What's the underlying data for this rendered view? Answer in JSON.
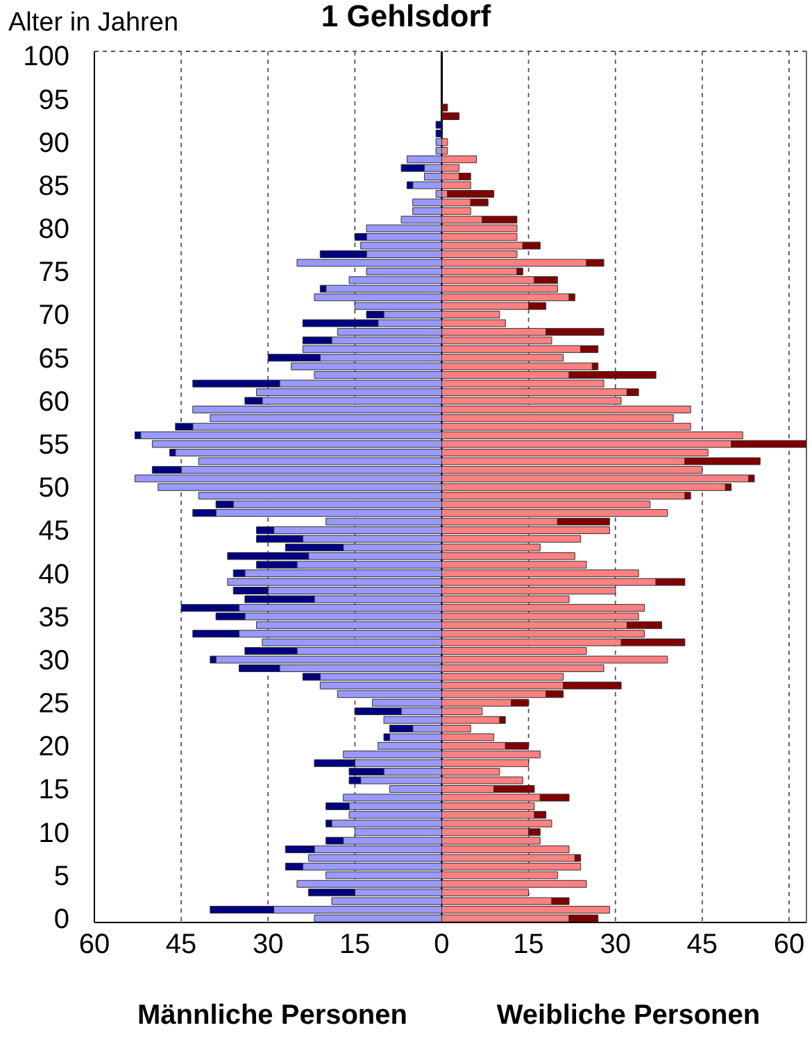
{
  "chart_data": {
    "type": "bar",
    "orientation": "horizontal",
    "stacked": true,
    "title": "1 Gehlsdorf",
    "ylabel": "Alter in Jahren",
    "annotations": [
      "Männliche Personen",
      "Weibliche Personen"
    ],
    "categories": [
      "100",
      null,
      null,
      null,
      null,
      "95",
      null,
      null,
      null,
      null,
      "90",
      null,
      null,
      null,
      null,
      "85",
      null,
      null,
      null,
      null,
      "80",
      null,
      null,
      null,
      null,
      "75",
      null,
      null,
      null,
      null,
      "70",
      null,
      null,
      null,
      null,
      "65",
      null,
      null,
      null,
      null,
      "60",
      null,
      null,
      null,
      null,
      "55",
      null,
      null,
      null,
      null,
      "50",
      null,
      null,
      null,
      null,
      "45",
      null,
      null,
      null,
      null,
      "40",
      null,
      null,
      null,
      null,
      "35",
      null,
      null,
      null,
      null,
      "30",
      null,
      null,
      null,
      null,
      "25",
      null,
      null,
      null,
      null,
      "20",
      null,
      null,
      null,
      null,
      "15",
      null,
      null,
      null,
      null,
      "10",
      null,
      null,
      null,
      null,
      "5",
      null,
      null,
      null,
      null,
      "0"
    ],
    "series": [
      {
        "color": "#9999ff",
        "values": [
          0,
          0,
          0,
          0,
          0,
          0,
          0,
          0,
          0,
          0,
          -1,
          -1,
          -6,
          -3,
          -3,
          -5,
          -1,
          -5,
          -5,
          -7,
          -13,
          -13,
          -14,
          -13,
          -25,
          -13,
          -16,
          -20,
          -22,
          -15,
          -10,
          -11,
          -18,
          -19,
          -24,
          -21,
          -26,
          -22,
          -28,
          -32,
          -31,
          -43,
          -40,
          -43,
          -52,
          -50,
          -46,
          -42,
          -45,
          -53,
          -49,
          -42,
          -36,
          -39,
          -20,
          -29,
          -24,
          -17,
          -23,
          -25,
          -34,
          -37,
          -30,
          -22,
          -35,
          -34,
          -32,
          -35,
          -31,
          -25,
          -39,
          -28,
          -21,
          -21,
          -18,
          -12,
          -7,
          -10,
          -5,
          -9,
          -11,
          -17,
          -15,
          -10,
          -14,
          -9,
          -17,
          -16,
          -16,
          -19,
          -15,
          -17,
          -22,
          -23,
          -24,
          -20,
          -25,
          -15,
          -19,
          -29,
          -22
        ]
      },
      {
        "color": "#000080",
        "values": [
          0,
          0,
          0,
          0,
          0,
          0,
          0,
          0,
          -1,
          -1,
          0,
          0,
          0,
          -4,
          0,
          -1,
          0,
          0,
          0,
          0,
          0,
          -2,
          0,
          -8,
          0,
          0,
          0,
          -1,
          0,
          0,
          -3,
          -13,
          0,
          -5,
          0,
          -9,
          0,
          0,
          -15,
          0,
          -3,
          0,
          0,
          -3,
          -1,
          0,
          -1,
          0,
          -5,
          0,
          0,
          0,
          -3,
          -4,
          0,
          -3,
          -8,
          -10,
          -14,
          -7,
          -2,
          0,
          -6,
          -12,
          -10,
          -5,
          0,
          -8,
          0,
          -9,
          -1,
          -7,
          -3,
          0,
          0,
          0,
          -8,
          0,
          -4,
          -1,
          0,
          0,
          -7,
          -6,
          -2,
          0,
          0,
          -4,
          0,
          -1,
          0,
          -3,
          -5,
          0,
          -3,
          0,
          0,
          -8,
          0,
          -11,
          0
        ]
      },
      {
        "color": "#ff8080",
        "values": [
          0,
          0,
          0,
          0,
          0,
          0,
          0,
          0,
          0,
          0,
          1,
          1,
          6,
          3,
          3,
          5,
          1,
          5,
          5,
          7,
          13,
          13,
          14,
          13,
          25,
          13,
          16,
          20,
          22,
          15,
          10,
          11,
          18,
          19,
          24,
          21,
          26,
          22,
          28,
          32,
          31,
          43,
          40,
          43,
          52,
          50,
          46,
          42,
          45,
          53,
          49,
          42,
          36,
          39,
          20,
          29,
          24,
          17,
          23,
          25,
          34,
          37,
          30,
          22,
          35,
          34,
          32,
          35,
          31,
          25,
          39,
          28,
          21,
          21,
          18,
          12,
          7,
          10,
          5,
          9,
          11,
          17,
          15,
          10,
          14,
          9,
          17,
          16,
          16,
          19,
          15,
          17,
          22,
          23,
          24,
          20,
          25,
          15,
          19,
          29,
          22
        ]
      },
      {
        "color": "#800000",
        "values": [
          0,
          0,
          0,
          0,
          0,
          0,
          1,
          3,
          0,
          0,
          0,
          0,
          0,
          0,
          2,
          0,
          8,
          3,
          0,
          6,
          0,
          0,
          3,
          0,
          3,
          1,
          4,
          0,
          1,
          3,
          0,
          0,
          10,
          0,
          3,
          0,
          1,
          15,
          0,
          2,
          0,
          0,
          0,
          0,
          0,
          13,
          0,
          13,
          0,
          1,
          1,
          1,
          0,
          0,
          9,
          0,
          0,
          0,
          0,
          0,
          0,
          5,
          0,
          0,
          0,
          0,
          6,
          0,
          11,
          0,
          0,
          0,
          0,
          10,
          3,
          3,
          0,
          1,
          0,
          0,
          4,
          0,
          0,
          0,
          0,
          7,
          5,
          0,
          2,
          0,
          2,
          0,
          0,
          1,
          0,
          0,
          0,
          0,
          3,
          0,
          5
        ]
      }
    ],
    "xlim": [
      -60,
      63
    ],
    "xticks": [
      {
        "value": -60,
        "label": "60"
      },
      {
        "value": -45,
        "label": "45"
      },
      {
        "value": -30,
        "label": "30"
      },
      {
        "value": -15,
        "label": "15"
      },
      0,
      15,
      30,
      45,
      60
    ],
    "grid": "x"
  }
}
